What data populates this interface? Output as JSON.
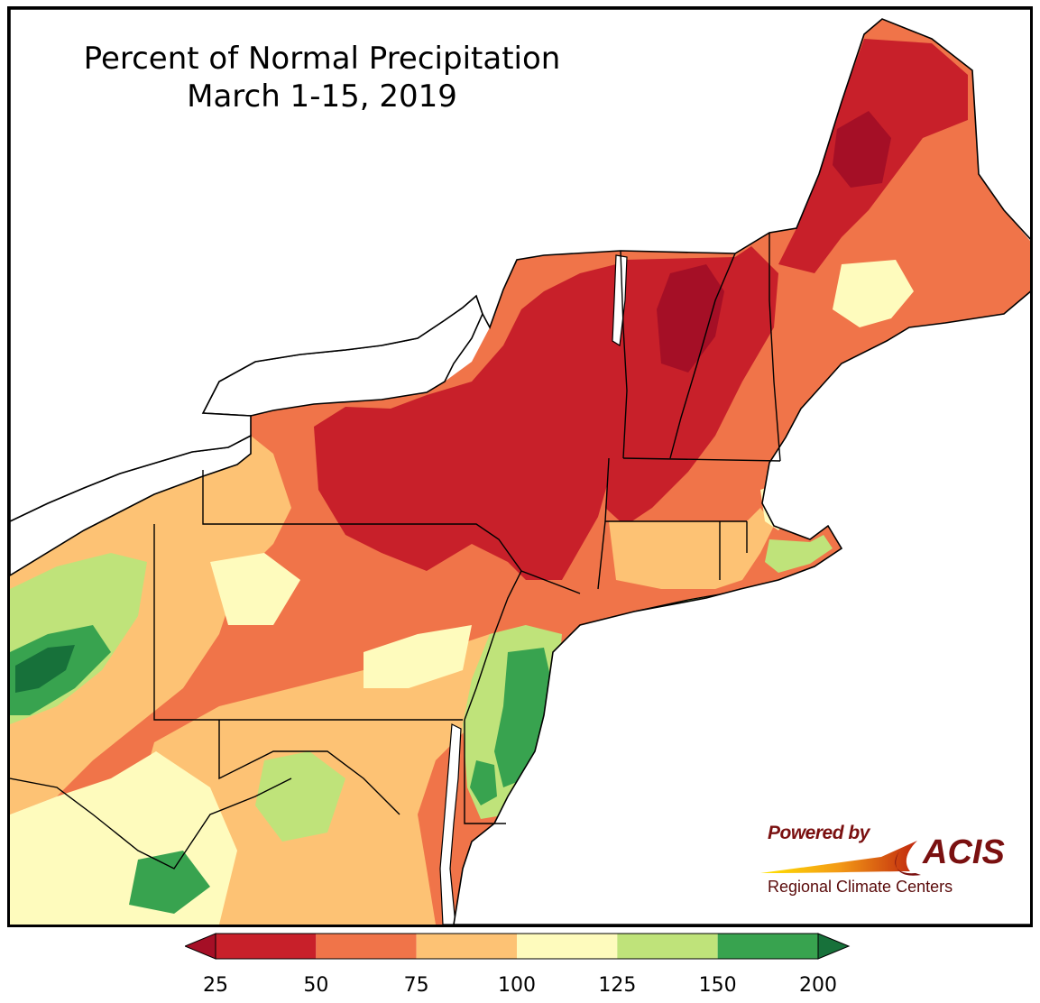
{
  "title": {
    "line1": "Percent of Normal Precipitation",
    "line2": "March 1-15, 2019"
  },
  "legend": {
    "tick_labels": [
      "25",
      "50",
      "75",
      "100",
      "125",
      "150",
      "200"
    ],
    "bins": [
      {
        "from": 25,
        "to": 50,
        "color": "#c8202a"
      },
      {
        "from": 50,
        "to": 75,
        "color": "#f07449"
      },
      {
        "from": 75,
        "to": 100,
        "color": "#fdc274"
      },
      {
        "from": 100,
        "to": 125,
        "color": "#fefbbd"
      },
      {
        "from": 125,
        "to": 150,
        "color": "#bfe37a"
      },
      {
        "from": 150,
        "to": 200,
        "color": "#38a34f"
      }
    ],
    "under_color": "#a50f26",
    "over_color": "#17713a"
  },
  "logo": {
    "powered_by": "Powered by",
    "name": "ACIS",
    "subtitle": "Regional Climate Centers"
  },
  "map_colors": {
    "water": "#ffffff",
    "very_dry": "#a50f26",
    "wet_heavy": "#17713a",
    "border": "#000000",
    "county_border": "#8a8a8a"
  }
}
